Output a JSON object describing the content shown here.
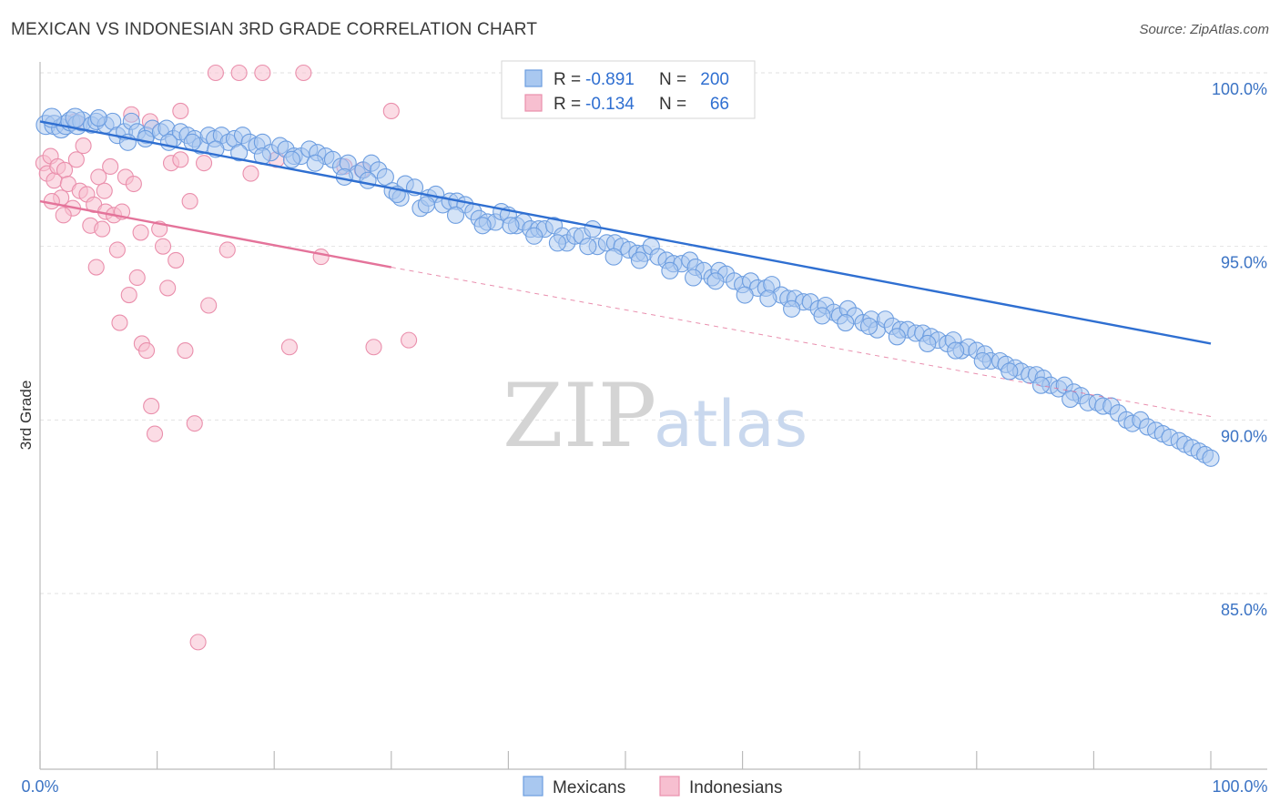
{
  "title": "MEXICAN VS INDONESIAN 3RD GRADE CORRELATION CHART",
  "source": "Source: ZipAtlas.com",
  "watermark": {
    "zip": "ZIP",
    "atlas": "atlas"
  },
  "legend": {
    "rows": [
      {
        "r_label": "R = ",
        "r_value": "-0.891",
        "n_label": "N = ",
        "n_value": "200"
      },
      {
        "r_label": "R = ",
        "r_value": "-0.134",
        "n_label": "N = ",
        "n_value": "66"
      }
    ]
  },
  "colors": {
    "mexicans_fill": "#a9c8f0",
    "mexicans_stroke": "#6c9de0",
    "mexicans_line": "#2f6fd1",
    "indonesians_fill": "#f7bfd0",
    "indonesians_stroke": "#ea8fac",
    "indonesians_line": "#e4739a",
    "tick_label": "#3b73c4",
    "grid": "#e2e2e2"
  },
  "chart_data": {
    "type": "scatter",
    "title": "MEXICAN VS INDONESIAN 3RD GRADE CORRELATION CHART",
    "xlabel": "",
    "ylabel": "3rd Grade",
    "xlim": [
      0,
      100
    ],
    "ylim": [
      80.5,
      100.8
    ],
    "x_tick_labels": [
      "0.0%",
      "100.0%"
    ],
    "y_ticks": [
      {
        "value": 100,
        "label": "100.0%"
      },
      {
        "value": 95,
        "label": "95.0%"
      },
      {
        "value": 90,
        "label": "90.0%"
      },
      {
        "value": 85,
        "label": "85.0%"
      }
    ],
    "grid": true,
    "legend_position": "bottom",
    "series": [
      {
        "name": "Mexicans",
        "r": -0.891,
        "n": 200,
        "trend": {
          "x": [
            0,
            100
          ],
          "y": [
            98.6,
            92.2
          ]
        },
        "points": [
          [
            0.5,
            98.5
          ],
          [
            1.2,
            98.5
          ],
          [
            1.8,
            98.4
          ],
          [
            2.2,
            98.5
          ],
          [
            2.6,
            98.6
          ],
          [
            3.2,
            98.5
          ],
          [
            3.6,
            98.6
          ],
          [
            4.4,
            98.5
          ],
          [
            4.8,
            98.6
          ],
          [
            5.6,
            98.5
          ],
          [
            6.2,
            98.6
          ],
          [
            6.6,
            98.2
          ],
          [
            7.2,
            98.3
          ],
          [
            7.8,
            98.6
          ],
          [
            8.3,
            98.3
          ],
          [
            9.1,
            98.2
          ],
          [
            9.6,
            98.4
          ],
          [
            10.3,
            98.3
          ],
          [
            10.8,
            98.4
          ],
          [
            11.4,
            98.1
          ],
          [
            12.0,
            98.3
          ],
          [
            12.6,
            98.2
          ],
          [
            13.2,
            98.1
          ],
          [
            13.7,
            97.9
          ],
          [
            14.4,
            98.2
          ],
          [
            14.9,
            98.1
          ],
          [
            15.5,
            98.2
          ],
          [
            16.1,
            98.0
          ],
          [
            16.6,
            98.1
          ],
          [
            17.3,
            98.2
          ],
          [
            17.9,
            98.0
          ],
          [
            18.5,
            97.9
          ],
          [
            19.0,
            98.0
          ],
          [
            19.7,
            97.7
          ],
          [
            20.5,
            97.9
          ],
          [
            21.0,
            97.8
          ],
          [
            21.7,
            97.6
          ],
          [
            22.3,
            97.6
          ],
          [
            23.0,
            97.8
          ],
          [
            23.7,
            97.7
          ],
          [
            24.4,
            97.6
          ],
          [
            25.0,
            97.5
          ],
          [
            25.7,
            97.3
          ],
          [
            26.3,
            97.4
          ],
          [
            27.1,
            97.1
          ],
          [
            27.6,
            97.2
          ],
          [
            28.3,
            97.4
          ],
          [
            28.9,
            97.2
          ],
          [
            29.5,
            97.0
          ],
          [
            30.1,
            96.6
          ],
          [
            30.8,
            96.4
          ],
          [
            31.2,
            96.8
          ],
          [
            32.0,
            96.7
          ],
          [
            32.5,
            96.1
          ],
          [
            33.2,
            96.4
          ],
          [
            33.8,
            96.5
          ],
          [
            34.4,
            96.2
          ],
          [
            35.0,
            96.3
          ],
          [
            35.6,
            96.3
          ],
          [
            36.3,
            96.2
          ],
          [
            37.0,
            96.0
          ],
          [
            37.5,
            95.8
          ],
          [
            38.2,
            95.7
          ],
          [
            38.9,
            95.7
          ],
          [
            39.4,
            96.0
          ],
          [
            40.0,
            95.9
          ],
          [
            40.7,
            95.6
          ],
          [
            41.3,
            95.7
          ],
          [
            41.9,
            95.5
          ],
          [
            42.6,
            95.5
          ],
          [
            43.1,
            95.5
          ],
          [
            43.9,
            95.6
          ],
          [
            44.6,
            95.3
          ],
          [
            45.0,
            95.1
          ],
          [
            45.7,
            95.3
          ],
          [
            46.3,
            95.3
          ],
          [
            47.2,
            95.5
          ],
          [
            47.6,
            95.0
          ],
          [
            48.4,
            95.1
          ],
          [
            49.1,
            95.1
          ],
          [
            49.7,
            95.0
          ],
          [
            50.3,
            94.9
          ],
          [
            51.0,
            94.8
          ],
          [
            51.6,
            94.8
          ],
          [
            52.2,
            95.0
          ],
          [
            52.8,
            94.7
          ],
          [
            53.5,
            94.6
          ],
          [
            54.1,
            94.5
          ],
          [
            54.8,
            94.5
          ],
          [
            55.5,
            94.6
          ],
          [
            56.0,
            94.4
          ],
          [
            56.7,
            94.3
          ],
          [
            57.4,
            94.1
          ],
          [
            58.0,
            94.3
          ],
          [
            58.6,
            94.2
          ],
          [
            59.3,
            94.0
          ],
          [
            60.0,
            93.9
          ],
          [
            60.7,
            94.0
          ],
          [
            61.3,
            93.8
          ],
          [
            62.0,
            93.8
          ],
          [
            62.5,
            93.9
          ],
          [
            63.3,
            93.6
          ],
          [
            63.9,
            93.5
          ],
          [
            64.5,
            93.5
          ],
          [
            65.2,
            93.4
          ],
          [
            65.8,
            93.4
          ],
          [
            66.5,
            93.2
          ],
          [
            67.1,
            93.3
          ],
          [
            67.8,
            93.1
          ],
          [
            68.3,
            93.0
          ],
          [
            69.0,
            93.2
          ],
          [
            69.6,
            93.0
          ],
          [
            70.3,
            92.8
          ],
          [
            71.0,
            92.9
          ],
          [
            71.5,
            92.6
          ],
          [
            72.2,
            92.9
          ],
          [
            72.8,
            92.7
          ],
          [
            73.5,
            92.6
          ],
          [
            74.1,
            92.6
          ],
          [
            74.8,
            92.5
          ],
          [
            75.4,
            92.5
          ],
          [
            76.1,
            92.4
          ],
          [
            76.7,
            92.3
          ],
          [
            77.5,
            92.2
          ],
          [
            78.0,
            92.3
          ],
          [
            78.7,
            92.0
          ],
          [
            79.3,
            92.1
          ],
          [
            80.0,
            92.0
          ],
          [
            80.7,
            91.9
          ],
          [
            81.2,
            91.7
          ],
          [
            82.0,
            91.7
          ],
          [
            82.5,
            91.6
          ],
          [
            83.3,
            91.5
          ],
          [
            83.8,
            91.4
          ],
          [
            84.5,
            91.3
          ],
          [
            85.1,
            91.3
          ],
          [
            85.7,
            91.2
          ],
          [
            86.3,
            91.0
          ],
          [
            87.0,
            90.9
          ],
          [
            87.5,
            91.0
          ],
          [
            88.3,
            90.8
          ],
          [
            88.9,
            90.7
          ],
          [
            89.5,
            90.5
          ],
          [
            90.3,
            90.5
          ],
          [
            90.8,
            90.4
          ],
          [
            91.5,
            90.4
          ],
          [
            92.1,
            90.2
          ],
          [
            92.8,
            90.0
          ],
          [
            93.3,
            89.9
          ],
          [
            94.0,
            90.0
          ],
          [
            94.6,
            89.8
          ],
          [
            95.3,
            89.7
          ],
          [
            95.9,
            89.6
          ],
          [
            96.5,
            89.5
          ],
          [
            97.3,
            89.4
          ],
          [
            97.8,
            89.3
          ],
          [
            98.4,
            89.2
          ],
          [
            99.0,
            89.1
          ],
          [
            99.5,
            89.0
          ],
          [
            100.0,
            88.9
          ],
          [
            1.0,
            98.7
          ],
          [
            3.0,
            98.7
          ],
          [
            5.0,
            98.7
          ],
          [
            7.5,
            98.0
          ],
          [
            9.0,
            98.1
          ],
          [
            11.0,
            98.0
          ],
          [
            13.0,
            98.0
          ],
          [
            15.0,
            97.8
          ],
          [
            17.0,
            97.7
          ],
          [
            19.0,
            97.6
          ],
          [
            21.5,
            97.5
          ],
          [
            23.5,
            97.4
          ],
          [
            26.0,
            97.0
          ],
          [
            28.0,
            96.9
          ],
          [
            30.5,
            96.5
          ],
          [
            33.0,
            96.2
          ],
          [
            35.5,
            95.9
          ],
          [
            37.8,
            95.6
          ],
          [
            40.2,
            95.6
          ],
          [
            42.2,
            95.3
          ],
          [
            44.2,
            95.1
          ],
          [
            46.8,
            95.0
          ],
          [
            49.0,
            94.7
          ],
          [
            51.2,
            94.6
          ],
          [
            53.8,
            94.3
          ],
          [
            55.8,
            94.1
          ],
          [
            57.7,
            94.0
          ],
          [
            60.2,
            93.6
          ],
          [
            62.2,
            93.5
          ],
          [
            64.2,
            93.2
          ],
          [
            66.8,
            93.0
          ],
          [
            68.8,
            92.8
          ],
          [
            70.8,
            92.7
          ],
          [
            73.2,
            92.4
          ],
          [
            75.8,
            92.2
          ],
          [
            78.2,
            92.0
          ],
          [
            80.5,
            91.7
          ],
          [
            82.8,
            91.4
          ],
          [
            85.5,
            91.0
          ],
          [
            88.0,
            90.6
          ]
        ]
      },
      {
        "name": "Indonesians",
        "r": -0.134,
        "n": 66,
        "trend": {
          "x": [
            0,
            30
          ],
          "y": [
            96.3,
            94.4
          ],
          "dashed_extension": {
            "x": [
              30,
              100
            ],
            "y": [
              94.4,
              90.1
            ]
          }
        },
        "points": [
          [
            0.3,
            97.4
          ],
          [
            0.6,
            97.1
          ],
          [
            0.9,
            97.6
          ],
          [
            1.2,
            96.9
          ],
          [
            1.5,
            97.3
          ],
          [
            1.8,
            96.4
          ],
          [
            2.1,
            97.2
          ],
          [
            2.4,
            96.8
          ],
          [
            2.8,
            96.1
          ],
          [
            3.1,
            97.5
          ],
          [
            3.4,
            96.6
          ],
          [
            3.7,
            97.9
          ],
          [
            4.0,
            96.5
          ],
          [
            4.3,
            95.6
          ],
          [
            4.6,
            96.2
          ],
          [
            5.0,
            97.0
          ],
          [
            5.3,
            95.5
          ],
          [
            5.6,
            96.0
          ],
          [
            6.0,
            97.3
          ],
          [
            6.3,
            95.9
          ],
          [
            6.6,
            94.9
          ],
          [
            7.0,
            96.0
          ],
          [
            7.3,
            97.0
          ],
          [
            7.6,
            93.6
          ],
          [
            8.0,
            96.8
          ],
          [
            8.3,
            94.1
          ],
          [
            8.7,
            92.2
          ],
          [
            9.1,
            92.0
          ],
          [
            9.5,
            90.4
          ],
          [
            9.8,
            89.6
          ],
          [
            10.2,
            95.5
          ],
          [
            10.5,
            95.0
          ],
          [
            10.9,
            93.8
          ],
          [
            11.2,
            97.4
          ],
          [
            11.6,
            94.6
          ],
          [
            12.0,
            97.5
          ],
          [
            12.4,
            92.0
          ],
          [
            12.8,
            96.3
          ],
          [
            13.2,
            89.9
          ],
          [
            13.5,
            83.6
          ],
          [
            14.0,
            97.4
          ],
          [
            14.4,
            93.3
          ],
          [
            15.0,
            100.0
          ],
          [
            16.0,
            94.9
          ],
          [
            17.0,
            100.0
          ],
          [
            18.0,
            97.1
          ],
          [
            19.0,
            100.0
          ],
          [
            20.2,
            97.5
          ],
          [
            21.3,
            92.1
          ],
          [
            22.5,
            100.0
          ],
          [
            24.0,
            94.7
          ],
          [
            26.0,
            97.3
          ],
          [
            27.5,
            97.2
          ],
          [
            28.5,
            92.1
          ],
          [
            30.0,
            98.9
          ],
          [
            31.5,
            92.3
          ],
          [
            3.0,
            98.6
          ],
          [
            5.5,
            96.6
          ],
          [
            2.0,
            95.9
          ],
          [
            4.8,
            94.4
          ],
          [
            6.8,
            92.8
          ],
          [
            8.6,
            95.4
          ],
          [
            1.0,
            96.3
          ],
          [
            12.0,
            98.9
          ],
          [
            7.8,
            98.8
          ],
          [
            9.4,
            98.6
          ]
        ]
      }
    ],
    "bottom_legend": [
      "Mexicans",
      "Indonesians"
    ]
  }
}
